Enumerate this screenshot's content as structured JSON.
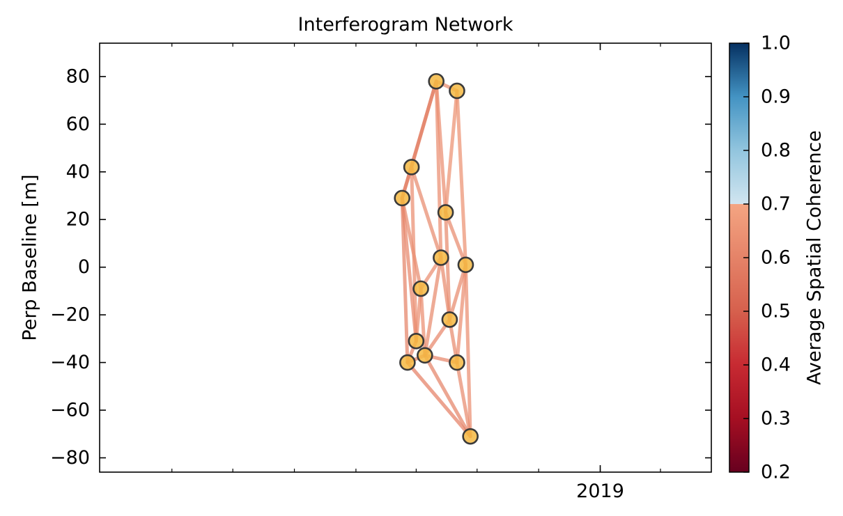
{
  "chart_data": {
    "type": "scatter",
    "title": "Interferogram Network",
    "xlabel": "",
    "ylabel": "Perp Baseline [m]",
    "ylim": [
      -86,
      94
    ],
    "yticks": [
      80,
      60,
      40,
      20,
      0,
      -20,
      -40,
      -60,
      -80
    ],
    "ytick_labels": [
      "80",
      "60",
      "40",
      "20",
      "0",
      "−20",
      "−40",
      "−60",
      "−80"
    ],
    "xlim": [
      "2016-12-14",
      "2019-06-16"
    ],
    "xtick_labeled": {
      "date": "2019-01-01",
      "label": "2019"
    },
    "x_minor_ticks": [
      "2017-04-01",
      "2017-07-01",
      "2017-10-01",
      "2018-01-01",
      "2018-04-01",
      "2018-07-01",
      "2018-10-01",
      "2019-01-01",
      "2019-04-01"
    ],
    "grid": false,
    "acquisitions": [
      {
        "date": "2018-03-11",
        "bperp": 29
      },
      {
        "date": "2018-03-25",
        "bperp": 42
      },
      {
        "date": "2018-03-19",
        "bperp": -40
      },
      {
        "date": "2018-04-01",
        "bperp": -31
      },
      {
        "date": "2018-04-08",
        "bperp": -9
      },
      {
        "date": "2018-04-14",
        "bperp": -37
      },
      {
        "date": "2018-05-01",
        "bperp": 78
      },
      {
        "date": "2018-05-08",
        "bperp": 4
      },
      {
        "date": "2018-05-15",
        "bperp": 23
      },
      {
        "date": "2018-05-21",
        "bperp": -22
      },
      {
        "date": "2018-06-01",
        "bperp": 74
      },
      {
        "date": "2018-06-01",
        "bperp": -40
      },
      {
        "date": "2018-06-14",
        "bperp": 1
      },
      {
        "date": "2018-06-21",
        "bperp": -71
      }
    ],
    "interferograms": [
      {
        "pair": [
          0,
          6
        ],
        "coherence": 0.55
      },
      {
        "pair": [
          1,
          6
        ],
        "coherence": 0.6
      },
      {
        "pair": [
          6,
          10
        ],
        "coherence": 0.62
      },
      {
        "pair": [
          6,
          7
        ],
        "coherence": 0.63
      },
      {
        "pair": [
          6,
          8
        ],
        "coherence": 0.63
      },
      {
        "pair": [
          10,
          8
        ],
        "coherence": 0.64
      },
      {
        "pair": [
          10,
          12
        ],
        "coherence": 0.64
      },
      {
        "pair": [
          0,
          1
        ],
        "coherence": 0.6
      },
      {
        "pair": [
          0,
          4
        ],
        "coherence": 0.62
      },
      {
        "pair": [
          0,
          3
        ],
        "coherence": 0.61
      },
      {
        "pair": [
          0,
          2
        ],
        "coherence": 0.6
      },
      {
        "pair": [
          1,
          7
        ],
        "coherence": 0.62
      },
      {
        "pair": [
          1,
          3
        ],
        "coherence": 0.63
      },
      {
        "pair": [
          8,
          12
        ],
        "coherence": 0.62
      },
      {
        "pair": [
          8,
          9
        ],
        "coherence": 0.62
      },
      {
        "pair": [
          7,
          4
        ],
        "coherence": 0.63
      },
      {
        "pair": [
          7,
          5
        ],
        "coherence": 0.62
      },
      {
        "pair": [
          7,
          9
        ],
        "coherence": 0.62
      },
      {
        "pair": [
          4,
          3
        ],
        "coherence": 0.63
      },
      {
        "pair": [
          4,
          5
        ],
        "coherence": 0.63
      },
      {
        "pair": [
          12,
          9
        ],
        "coherence": 0.62
      },
      {
        "pair": [
          12,
          11
        ],
        "coherence": 0.63
      },
      {
        "pair": [
          12,
          13
        ],
        "coherence": 0.63
      },
      {
        "pair": [
          9,
          5
        ],
        "coherence": 0.61
      },
      {
        "pair": [
          9,
          11
        ],
        "coherence": 0.62
      },
      {
        "pair": [
          3,
          2
        ],
        "coherence": 0.61
      },
      {
        "pair": [
          2,
          5
        ],
        "coherence": 0.6
      },
      {
        "pair": [
          2,
          13
        ],
        "coherence": 0.59
      },
      {
        "pair": [
          5,
          11
        ],
        "coherence": 0.61
      },
      {
        "pair": [
          5,
          13
        ],
        "coherence": 0.6
      },
      {
        "pair": [
          11,
          13
        ],
        "coherence": 0.62
      }
    ],
    "node_color": "#f5b942",
    "node_edge_color": "#3a3a3a",
    "colorbar": {
      "label": "Average Spatial Coherence",
      "range": [
        0.2,
        1.0
      ],
      "ticks": [
        1.0,
        0.9,
        0.8,
        0.7,
        0.6,
        0.5,
        0.4,
        0.3,
        0.2
      ],
      "tick_labels": [
        "1.0",
        "0.9",
        "0.8",
        "0.7",
        "0.6",
        "0.5",
        "0.4",
        "0.3",
        "0.2"
      ],
      "stops": [
        {
          "value": 0.2,
          "color": "#67001f"
        },
        {
          "value": 0.3,
          "color": "#a50f22"
        },
        {
          "value": 0.4,
          "color": "#c72a32"
        },
        {
          "value": 0.5,
          "color": "#d6604d"
        },
        {
          "value": 0.6,
          "color": "#e58368"
        },
        {
          "value": 0.7,
          "color": "#f4a582"
        },
        {
          "value": 0.7001,
          "color": "#d1e5f0"
        },
        {
          "value": 0.8,
          "color": "#92c5de"
        },
        {
          "value": 0.9,
          "color": "#4393c3"
        },
        {
          "value": 1.0,
          "color": "#053061"
        }
      ]
    }
  }
}
